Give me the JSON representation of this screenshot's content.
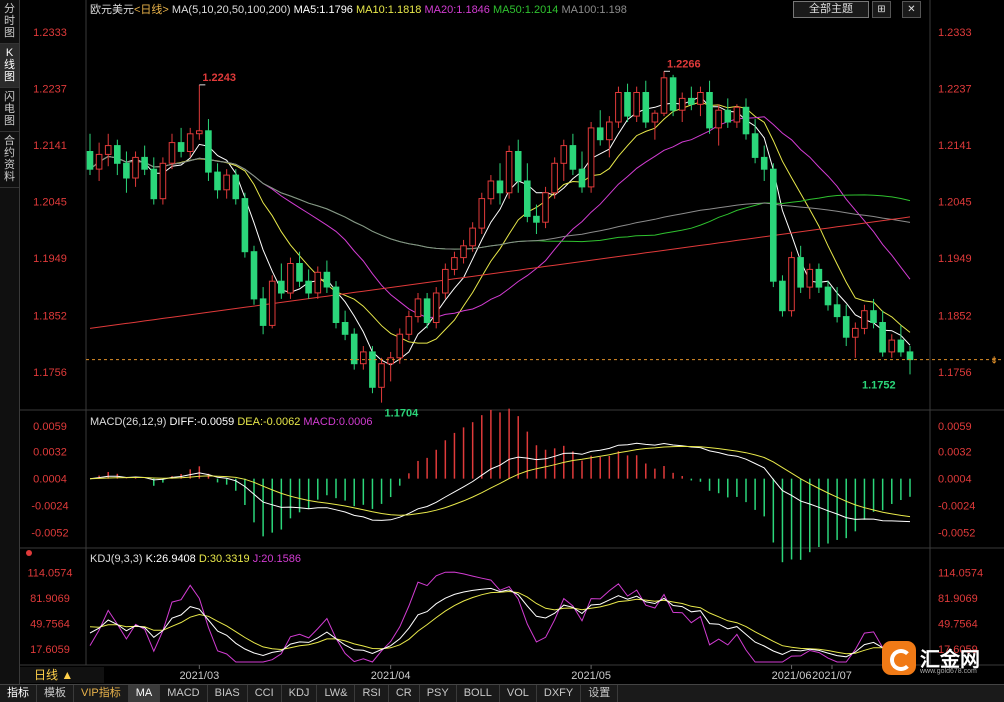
{
  "left_tabs": [
    "分时图",
    "K线图",
    "闪电图",
    "合约资料"
  ],
  "top": {
    "symbol": "欧元美元",
    "period_tag": "<日线>",
    "ma_header": "MA(5,10,20,50,100,200)",
    "ma_values": [
      {
        "label": "MA5:1.1796",
        "color": "#ffffff"
      },
      {
        "label": "MA10:1.1818",
        "color": "#e8e84a"
      },
      {
        "label": "MA20:1.1846",
        "color": "#d23cd2"
      },
      {
        "label": "MA50:1.2014",
        "color": "#2fc22f"
      },
      {
        "label": "MA100:1.198",
        "color": "#8c8c8c"
      }
    ],
    "theme_button": "全部主题",
    "window_buttons": [
      "⊞",
      "✕"
    ]
  },
  "price_axis": [
    "1.2333",
    "1.2237",
    "1.2141",
    "1.2045",
    "1.1949",
    "1.1852",
    "1.1756"
  ],
  "macd_axis": [
    "0.0059",
    "0.0032",
    "0.0004",
    "-0.0024",
    "-0.0052"
  ],
  "kdj_axis": [
    "114.0574",
    "81.9069",
    "49.7564",
    "17.6059"
  ],
  "date_labels": [
    "2021/03",
    "2021/04",
    "2021/05",
    "2021/06",
    "2021/07"
  ],
  "annotations": {
    "high1": "1.2243",
    "high2": "1.2266",
    "low1": "1.1704",
    "low2": "1.1752"
  },
  "macd_header": {
    "title": "MACD(26,12,9)",
    "diff": "DIFF:-0.0059",
    "dea": "DEA:-0.0062",
    "macd": "MACD:0.0006"
  },
  "kdj_header": {
    "title": "KDJ(9,3,3)",
    "k": "K:26.9408",
    "d": "D:30.3319",
    "j": "J:20.1586"
  },
  "period_button": "日线",
  "bottom_tabs": [
    "指标",
    "模板",
    "VIP指标",
    "MA",
    "MACD",
    "BIAS",
    "CCI",
    "KDJ",
    "LW&",
    "RSI",
    "CR",
    "PSY",
    "BOLL",
    "VOL",
    "DXFY",
    "设置"
  ],
  "logo": {
    "text": "汇金网",
    "url": "www.gold678.com"
  },
  "colors": {
    "up": "#e03a3a",
    "down": "#2bd67a",
    "ma5": "#ffffff",
    "ma10": "#e8e84a",
    "ma20": "#d23cd2",
    "ma50": "#2fc22f",
    "ma100": "#8c8c8c",
    "ma200": "#e03a3a",
    "axis_up": "#e03a3a",
    "axis_down": "#2bd67a"
  },
  "chart_data": {
    "type": "candlestick",
    "title": "欧元美元 <日线>",
    "ylim": [
      1.17,
      1.2353
    ],
    "price_ticks": [
      1.2333,
      1.2237,
      1.2141,
      1.2045,
      1.1949,
      1.1852,
      1.1756
    ],
    "last_price": 1.1777,
    "x_months": [
      "2021/03",
      "2021/04",
      "2021/05",
      "2021/06",
      "2021/07"
    ],
    "ohlc": [
      [
        1.213,
        1.216,
        1.209,
        1.21
      ],
      [
        1.21,
        1.2145,
        1.208,
        1.2125
      ],
      [
        1.2125,
        1.216,
        1.2105,
        1.214
      ],
      [
        1.214,
        1.215,
        1.209,
        1.211
      ],
      [
        1.211,
        1.213,
        1.206,
        1.2085
      ],
      [
        1.2085,
        1.213,
        1.207,
        1.212
      ],
      [
        1.212,
        1.214,
        1.209,
        1.21
      ],
      [
        1.21,
        1.212,
        1.204,
        1.205
      ],
      [
        1.205,
        1.212,
        1.204,
        1.211
      ],
      [
        1.211,
        1.216,
        1.21,
        1.2145
      ],
      [
        1.2145,
        1.217,
        1.212,
        1.213
      ],
      [
        1.213,
        1.217,
        1.212,
        1.216
      ],
      [
        1.216,
        1.2243,
        1.215,
        1.2165
      ],
      [
        1.2165,
        1.2185,
        1.208,
        1.2095
      ],
      [
        1.2095,
        1.211,
        1.205,
        1.2065
      ],
      [
        1.2065,
        1.21,
        1.205,
        1.209
      ],
      [
        1.209,
        1.21,
        1.204,
        1.205
      ],
      [
        1.205,
        1.206,
        1.195,
        1.196
      ],
      [
        1.196,
        1.197,
        1.187,
        1.188
      ],
      [
        1.188,
        1.19,
        1.182,
        1.1835
      ],
      [
        1.1835,
        1.192,
        1.183,
        1.191
      ],
      [
        1.191,
        1.194,
        1.188,
        1.189
      ],
      [
        1.189,
        1.195,
        1.188,
        1.194
      ],
      [
        1.194,
        1.196,
        1.19,
        1.191
      ],
      [
        1.191,
        1.193,
        1.188,
        1.189
      ],
      [
        1.189,
        1.1935,
        1.188,
        1.1925
      ],
      [
        1.1925,
        1.1945,
        1.189,
        1.19
      ],
      [
        1.19,
        1.191,
        1.183,
        1.184
      ],
      [
        1.184,
        1.186,
        1.181,
        1.182
      ],
      [
        1.182,
        1.183,
        1.176,
        1.177
      ],
      [
        1.177,
        1.18,
        1.176,
        1.179
      ],
      [
        1.179,
        1.18,
        1.172,
        1.173
      ],
      [
        1.173,
        1.178,
        1.1704,
        1.177
      ],
      [
        1.177,
        1.179,
        1.174,
        1.178
      ],
      [
        1.178,
        1.183,
        1.177,
        1.182
      ],
      [
        1.182,
        1.186,
        1.181,
        1.185
      ],
      [
        1.185,
        1.189,
        1.184,
        1.188
      ],
      [
        1.188,
        1.189,
        1.183,
        1.184
      ],
      [
        1.184,
        1.19,
        1.183,
        1.189
      ],
      [
        1.189,
        1.194,
        1.188,
        1.193
      ],
      [
        1.193,
        1.196,
        1.192,
        1.195
      ],
      [
        1.195,
        1.198,
        1.194,
        1.197
      ],
      [
        1.197,
        1.201,
        1.196,
        1.2
      ],
      [
        1.2,
        1.206,
        1.199,
        1.205
      ],
      [
        1.205,
        1.209,
        1.204,
        1.208
      ],
      [
        1.208,
        1.211,
        1.204,
        1.206
      ],
      [
        1.206,
        1.214,
        1.205,
        1.213
      ],
      [
        1.213,
        1.215,
        1.206,
        1.208
      ],
      [
        1.208,
        1.211,
        1.201,
        1.202
      ],
      [
        1.202,
        1.204,
        1.199,
        1.201
      ],
      [
        1.201,
        1.207,
        1.2,
        1.206
      ],
      [
        1.206,
        1.212,
        1.205,
        1.211
      ],
      [
        1.211,
        1.215,
        1.208,
        1.214
      ],
      [
        1.214,
        1.216,
        1.209,
        1.21
      ],
      [
        1.21,
        1.213,
        1.206,
        1.207
      ],
      [
        1.207,
        1.218,
        1.206,
        1.217
      ],
      [
        1.217,
        1.22,
        1.214,
        1.215
      ],
      [
        1.215,
        1.219,
        1.212,
        1.218
      ],
      [
        1.218,
        1.224,
        1.217,
        1.223
      ],
      [
        1.223,
        1.2245,
        1.218,
        1.219
      ],
      [
        1.219,
        1.224,
        1.218,
        1.223
      ],
      [
        1.223,
        1.225,
        1.217,
        1.218
      ],
      [
        1.218,
        1.22,
        1.215,
        1.2195
      ],
      [
        1.2195,
        1.2266,
        1.219,
        1.2255
      ],
      [
        1.2255,
        1.226,
        1.219,
        1.22
      ],
      [
        1.22,
        1.223,
        1.218,
        1.222
      ],
      [
        1.222,
        1.224,
        1.22,
        1.221
      ],
      [
        1.221,
        1.224,
        1.219,
        1.223
      ],
      [
        1.223,
        1.225,
        1.216,
        1.217
      ],
      [
        1.217,
        1.221,
        1.214,
        1.22
      ],
      [
        1.22,
        1.222,
        1.217,
        1.218
      ],
      [
        1.218,
        1.221,
        1.217,
        1.2205
      ],
      [
        1.2205,
        1.222,
        1.215,
        1.216
      ],
      [
        1.216,
        1.2185,
        1.211,
        1.212
      ],
      [
        1.212,
        1.214,
        1.208,
        1.21
      ],
      [
        1.21,
        1.211,
        1.19,
        1.191
      ],
      [
        1.191,
        1.192,
        1.185,
        1.186
      ],
      [
        1.186,
        1.196,
        1.185,
        1.195
      ],
      [
        1.195,
        1.197,
        1.189,
        1.19
      ],
      [
        1.19,
        1.194,
        1.188,
        1.193
      ],
      [
        1.193,
        1.194,
        1.189,
        1.19
      ],
      [
        1.19,
        1.191,
        1.186,
        1.187
      ],
      [
        1.187,
        1.19,
        1.184,
        1.185
      ],
      [
        1.185,
        1.187,
        1.18,
        1.1815
      ],
      [
        1.1815,
        1.184,
        1.178,
        1.183
      ],
      [
        1.183,
        1.187,
        1.182,
        1.186
      ],
      [
        1.186,
        1.188,
        1.183,
        1.184
      ],
      [
        1.184,
        1.186,
        1.1782,
        1.179
      ],
      [
        1.179,
        1.182,
        1.178,
        1.181
      ],
      [
        1.181,
        1.1835,
        1.1782,
        1.179
      ],
      [
        1.179,
        1.18,
        1.1752,
        1.1777
      ]
    ],
    "macd": {
      "diff": -0.0059,
      "dea": -0.0062,
      "macd": 0.0006,
      "ylim": [
        -0.0065,
        0.0065
      ]
    },
    "kdj": {
      "k": 26.9408,
      "d": 30.3319,
      "j": 20.1586,
      "ylim": [
        1.5,
        130
      ]
    }
  }
}
